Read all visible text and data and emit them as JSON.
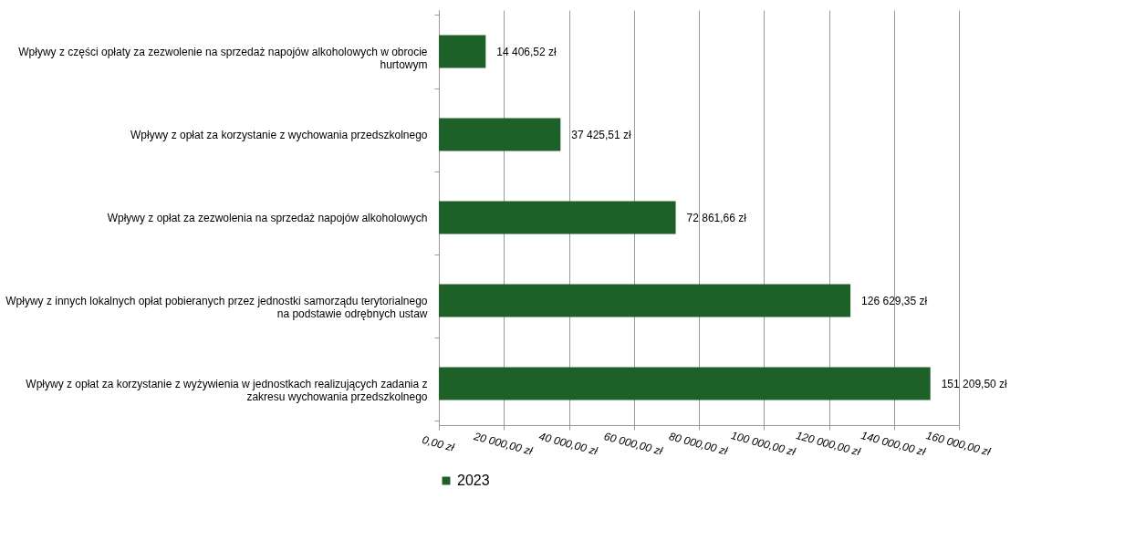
{
  "chart_data": {
    "type": "bar",
    "orientation": "horizontal",
    "categories": [
      "Wpływy z części opłaty za zezwolenie na sprzedaż napojów alkoholowych w obrocie hurtowym",
      "Wpływy z opłat za korzystanie z wychowania przedszkolnego",
      "Wpływy z opłat za zezwolenia na sprzedaż napojów alkoholowych",
      "Wpływy z innych lokalnych opłat pobieranych przez jednostki samorządu terytorialnego na podstawie odrębnych ustaw",
      "Wpływy z opłat za korzystanie z wyżywienia w jednostkach realizujących zadania z zakresu wychowania przedszkolnego"
    ],
    "series": [
      {
        "name": "2023",
        "color": "#1e6128",
        "values": [
          14406.52,
          37425.51,
          72861.66,
          126629.35,
          151209.5
        ],
        "value_labels": [
          "14 406,52 zł",
          "37 425,51 zł",
          "72 861,66 zł",
          "126 629,35 zł",
          "151 209,50 zł"
        ]
      }
    ],
    "xlim": [
      0,
      160000
    ],
    "xticks": [
      {
        "value": 0,
        "label": "0,00 zł"
      },
      {
        "value": 20000,
        "label": "20 000,00 zł"
      },
      {
        "value": 40000,
        "label": "40 000,00 zł"
      },
      {
        "value": 60000,
        "label": "60 000,00 zł"
      },
      {
        "value": 80000,
        "label": "80 000,00 zł"
      },
      {
        "value": 100000,
        "label": "100 000,00 zł"
      },
      {
        "value": 120000,
        "label": "120 000,00 zł"
      },
      {
        "value": 140000,
        "label": "140 000,00 zł"
      },
      {
        "value": 160000,
        "label": "160 000,00 zł"
      }
    ],
    "grid": "x",
    "legend": "bottom"
  }
}
